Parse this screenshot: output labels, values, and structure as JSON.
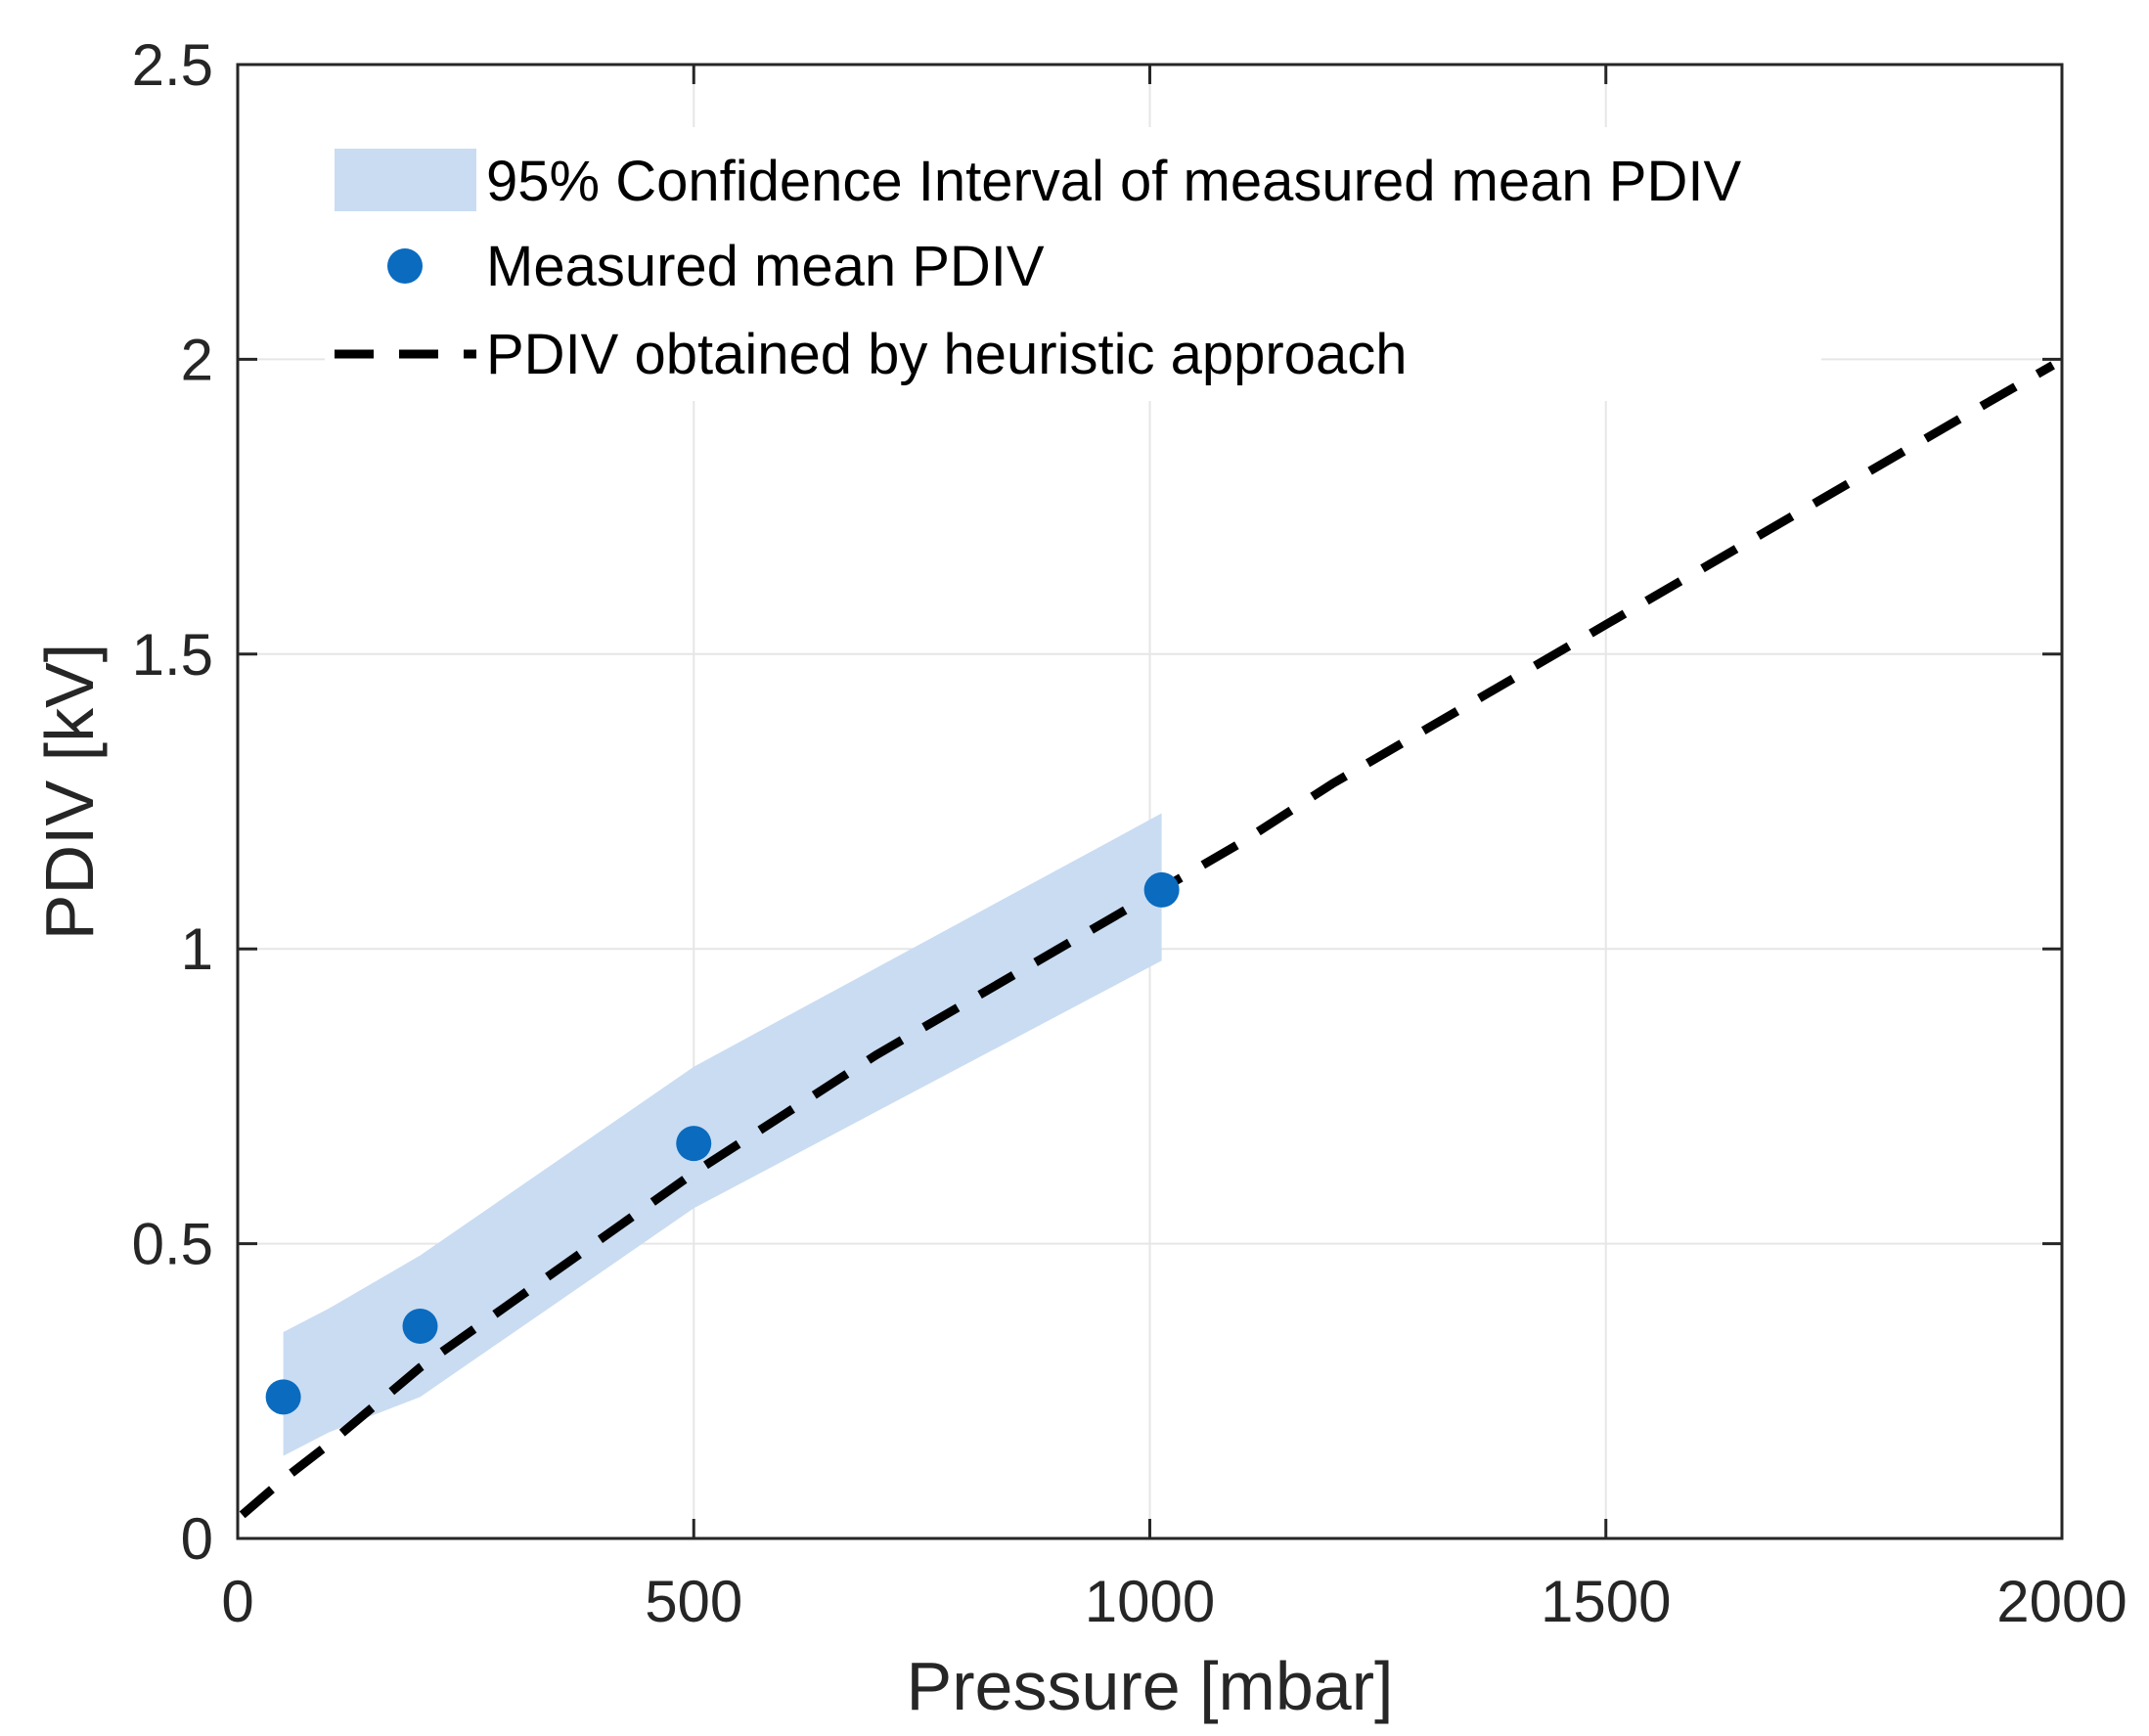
{
  "chart_data": {
    "type": "line",
    "title": "",
    "xlabel": "Pressure [mbar]",
    "ylabel": "PDIV [kV]",
    "xlim": [
      0,
      2000
    ],
    "ylim": [
      0,
      2.5
    ],
    "x_ticks": [
      0,
      500,
      1000,
      1500,
      2000
    ],
    "y_ticks": [
      0,
      0.5,
      1,
      1.5,
      2,
      2.5
    ],
    "x_tick_labels": [
      "0",
      "500",
      "1000",
      "1500",
      "2000"
    ],
    "y_tick_labels": [
      "0",
      "0.5",
      "1",
      "1.5",
      "2",
      "2.5"
    ],
    "grid": true,
    "legend_position": "top-left",
    "series": [
      {
        "name": "95% Confidence Interval of measured mean PDIV",
        "kind": "band",
        "color": "#c9dcf2",
        "x": [
          50,
          100,
          200,
          500,
          1013
        ],
        "lower": [
          0.14,
          0.18,
          0.24,
          0.56,
          0.98
        ],
        "upper": [
          0.35,
          0.39,
          0.48,
          0.8,
          1.23
        ]
      },
      {
        "name": "Measured mean PDIV",
        "kind": "scatter",
        "color": "#0a6bbf",
        "x": [
          50,
          200,
          500,
          1013
        ],
        "y": [
          0.24,
          0.36,
          0.67,
          1.1
        ]
      },
      {
        "name": "PDIV obtained by heuristic approach",
        "kind": "dashed-line",
        "color": "#000000",
        "x": [
          5,
          50,
          100,
          200,
          300,
          400,
          500,
          600,
          700,
          800,
          900,
          1000,
          1100,
          1200,
          1300,
          1400,
          1500,
          1600,
          1700,
          1800,
          1900,
          1990
        ],
        "y": [
          0.04,
          0.1,
          0.16,
          0.29,
          0.4,
          0.51,
          0.62,
          0.72,
          0.82,
          0.91,
          1.0,
          1.09,
          1.18,
          1.28,
          1.37,
          1.46,
          1.55,
          1.64,
          1.73,
          1.82,
          1.91,
          1.99
        ]
      }
    ]
  }
}
